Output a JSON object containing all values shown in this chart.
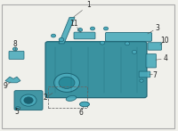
{
  "background_color": "#f0f0eb",
  "border_color": "#aaaaaa",
  "teal_color": "#2a8a9a",
  "teal_dark": "#1a6070",
  "teal_light": "#4aaabb",
  "label_color": "#222222",
  "line_color": "#555555",
  "label_fontsize": 5.5
}
